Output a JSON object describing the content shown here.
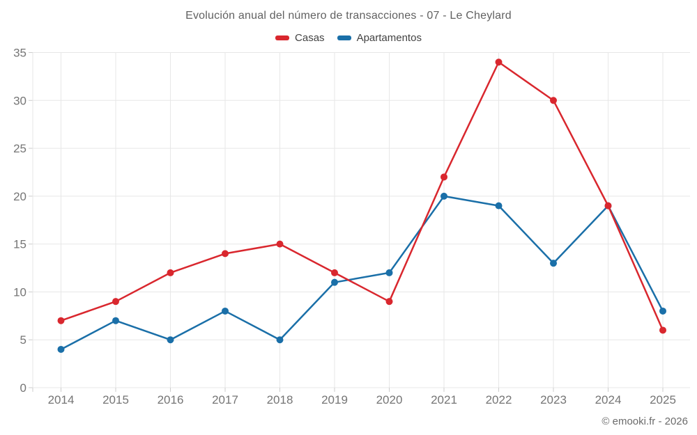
{
  "chart_data": {
    "type": "line",
    "title": "Evolución anual del número de transacciones - 07 - Le Cheylard",
    "categories": [
      "2014",
      "2015",
      "2016",
      "2017",
      "2018",
      "2019",
      "2020",
      "2021",
      "2022",
      "2023",
      "2024",
      "2025"
    ],
    "series": [
      {
        "name": "Casas",
        "color": "#d9272e",
        "values": [
          7,
          9,
          12,
          14,
          15,
          12,
          9,
          22,
          34,
          30,
          19,
          6
        ]
      },
      {
        "name": "Apartamentos",
        "color": "#1a6fa8",
        "values": [
          4,
          7,
          5,
          8,
          5,
          11,
          12,
          20,
          19,
          13,
          19,
          8
        ]
      }
    ],
    "xlabel": "",
    "ylabel": "",
    "ylim": [
      0,
      35
    ],
    "yticks": [
      0,
      5,
      10,
      15,
      20,
      25,
      30,
      35
    ],
    "grid": true,
    "legend_position": "top-center"
  },
  "attribution": {
    "text": "© emooki.fr - 2026"
  },
  "colors": {
    "grid": "#e7e7e7",
    "tick": "#cccccc",
    "axis_text": "#757575"
  }
}
